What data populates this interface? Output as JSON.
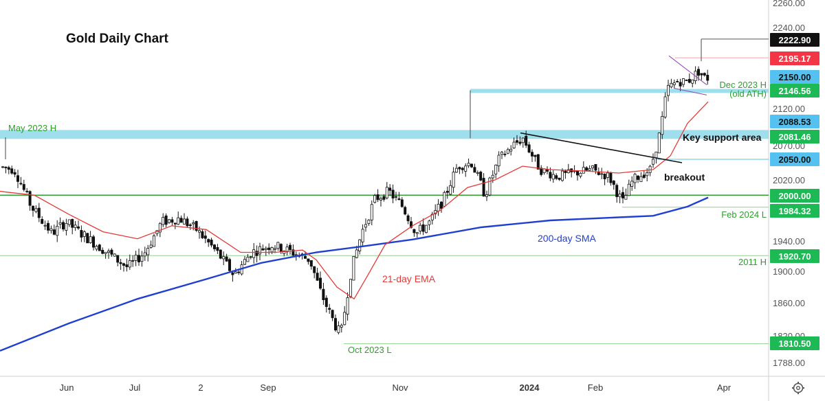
{
  "chart_data": {
    "type": "candlestick",
    "title": "Gold Daily Chart",
    "y_axis": {
      "range": [
        1770,
        2262
      ],
      "ticks": [
        2260,
        2240,
        2120,
        2070,
        2020,
        1940,
        1900,
        1860,
        1820,
        1788
      ],
      "tick_labels": [
        "2260.00",
        "2240.00",
        "2120.00",
        "2070.00",
        "2020.00",
        "1940.00",
        "1900.00",
        "1860.00",
        "1820.00",
        "1788.00"
      ]
    },
    "x_axis": {
      "labels": [
        "Jun",
        "Jul",
        "2",
        "Sep",
        "Nov",
        "2024",
        "Feb",
        "Apr"
      ]
    },
    "price_badges": [
      {
        "value": 2222.9,
        "label": "2222.90",
        "color": "#111111"
      },
      {
        "value": 2195.17,
        "label": "2195.17",
        "color": "#f23645"
      },
      {
        "value": 2150.0,
        "label": "2150.00",
        "color": "#55c1f0"
      },
      {
        "value": 2146.56,
        "label": "2146.56",
        "color": "#1db954"
      },
      {
        "value": 2088.53,
        "label": "2088.53",
        "color": "#55c1f0"
      },
      {
        "value": 2081.46,
        "label": "2081.46",
        "color": "#1db954"
      },
      {
        "value": 2050.0,
        "label": "2050.00",
        "color": "#55c1f0"
      },
      {
        "value": 2000.0,
        "label": "2000.00",
        "color": "#1db954"
      },
      {
        "value": 1984.32,
        "label": "1984.32",
        "color": "#1db954"
      },
      {
        "value": 1920.7,
        "label": "1920.70",
        "color": "#1db954"
      },
      {
        "value": 1810.5,
        "label": "1810.50",
        "color": "#1db954"
      }
    ],
    "support_zone": {
      "from": 2079,
      "to": 2091,
      "label": "Key support area"
    },
    "dec_zone": {
      "from": 2143,
      "to": 2149
    },
    "levels": [
      {
        "value": 2000.0,
        "color": "#2e9e2e"
      },
      {
        "value": 1984.32,
        "color": "#8fd18f"
      },
      {
        "value": 1920.7,
        "color": "#8fd18f"
      },
      {
        "value": 1810.5,
        "color": "#8fd18f"
      },
      {
        "value": 2050.0,
        "color": "#55c1f0"
      },
      {
        "value": 2195.17,
        "color": "#f7a1a8"
      },
      {
        "value": 2222.9,
        "color": "#555555"
      }
    ],
    "annotations": {
      "may_high": "May 2023 H",
      "dec_high": "Dec 2023 H",
      "old_ath": "(old ATH)",
      "feb_low": "Feb 2024 L",
      "h2011": "2011 H",
      "oct_low": "Oct 2023 L",
      "breakout": "breakout",
      "sma_label": "200-day SMA",
      "ema_label": "21-day EMA"
    },
    "colors": {
      "sma": "#1f3fd1",
      "ema": "#e53935",
      "up_candle": "#ffffff",
      "down_candle": "#111111",
      "zone": "#7fd3e6",
      "trendline": "#111111",
      "wedge": "#8e44ad"
    },
    "price_path_anchors": [
      [
        0,
        2040
      ],
      [
        25,
        2035
      ],
      [
        50,
        1985
      ],
      [
        80,
        1950
      ],
      [
        100,
        1965
      ],
      [
        130,
        1945
      ],
      [
        160,
        1925
      ],
      [
        190,
        1905
      ],
      [
        215,
        1925
      ],
      [
        240,
        1965
      ],
      [
        265,
        1970
      ],
      [
        290,
        1955
      ],
      [
        320,
        1925
      ],
      [
        345,
        1895
      ],
      [
        370,
        1925
      ],
      [
        400,
        1935
      ],
      [
        430,
        1925
      ],
      [
        455,
        1915
      ],
      [
        470,
        1875
      ],
      [
        485,
        1845
      ],
      [
        500,
        1820
      ],
      [
        515,
        1900
      ],
      [
        530,
        1950
      ],
      [
        550,
        1995
      ],
      [
        570,
        2005
      ],
      [
        590,
        1985
      ],
      [
        610,
        1950
      ],
      [
        630,
        1965
      ],
      [
        650,
        1995
      ],
      [
        670,
        2040
      ],
      [
        690,
        2045
      ],
      [
        710,
        2000
      ],
      [
        730,
        2050
      ],
      [
        750,
        2070
      ],
      [
        765,
        2080
      ],
      [
        790,
        2035
      ],
      [
        815,
        2025
      ],
      [
        840,
        2030
      ],
      [
        865,
        2035
      ],
      [
        890,
        2025
      ],
      [
        910,
        1990
      ],
      [
        925,
        2020
      ],
      [
        950,
        2035
      ],
      [
        965,
        2090
      ],
      [
        975,
        2150
      ],
      [
        990,
        2160
      ],
      [
        1005,
        2160
      ],
      [
        1020,
        2175
      ],
      [
        1030,
        2165
      ]
    ],
    "sma_points": [
      [
        0,
        1802
      ],
      [
        100,
        1835
      ],
      [
        200,
        1865
      ],
      [
        300,
        1890
      ],
      [
        380,
        1911
      ],
      [
        460,
        1925
      ],
      [
        520,
        1932
      ],
      [
        600,
        1942
      ],
      [
        700,
        1958
      ],
      [
        800,
        1967
      ],
      [
        900,
        1971
      ],
      [
        950,
        1973
      ],
      [
        1000,
        1985
      ],
      [
        1030,
        1997
      ]
    ],
    "ema_points": [
      [
        0,
        2005
      ],
      [
        50,
        2000
      ],
      [
        100,
        1975
      ],
      [
        150,
        1952
      ],
      [
        200,
        1943
      ],
      [
        250,
        1960
      ],
      [
        300,
        1955
      ],
      [
        350,
        1925
      ],
      [
        400,
        1925
      ],
      [
        440,
        1928
      ],
      [
        460,
        1915
      ],
      [
        490,
        1880
      ],
      [
        515,
        1865
      ],
      [
        535,
        1895
      ],
      [
        560,
        1935
      ],
      [
        600,
        1960
      ],
      [
        640,
        1980
      ],
      [
        680,
        2010
      ],
      [
        720,
        2020
      ],
      [
        760,
        2040
      ],
      [
        800,
        2035
      ],
      [
        850,
        2033
      ],
      [
        900,
        2030
      ],
      [
        950,
        2035
      ],
      [
        975,
        2055
      ],
      [
        1000,
        2100
      ],
      [
        1030,
        2130
      ]
    ]
  },
  "settings_icon": "gear-icon"
}
